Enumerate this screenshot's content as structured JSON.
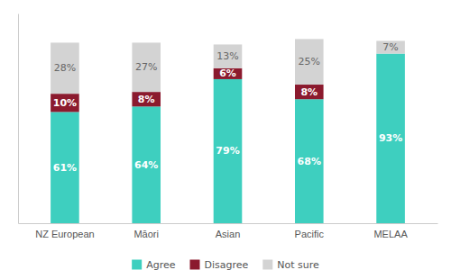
{
  "chart_data": {
    "type": "bar",
    "stacked": true,
    "categories": [
      "NZ European",
      "Māori",
      "Asian",
      "Pacific",
      "MELAA"
    ],
    "series": [
      {
        "name": "Agree",
        "color": "#3ecfbf",
        "values": [
          61,
          64,
          79,
          68,
          93
        ],
        "value_labels": [
          "61%",
          "64%",
          "79%",
          "68%",
          "93%"
        ]
      },
      {
        "name": "Disagree",
        "color": "#8b1a2e",
        "values": [
          10,
          8,
          6,
          8,
          0
        ],
        "value_labels": [
          "10%",
          "8%",
          "6%",
          "8%",
          null
        ]
      },
      {
        "name": "Not sure",
        "color": "#d3d3d3",
        "values": [
          28,
          27,
          13,
          25,
          7
        ],
        "value_labels": [
          "28%",
          "27%",
          "13%",
          "25%",
          "7%"
        ]
      }
    ],
    "ylim": [
      0,
      115
    ],
    "tick_labels": "x",
    "grid": false,
    "legend": "bottom",
    "data_labels": true
  }
}
